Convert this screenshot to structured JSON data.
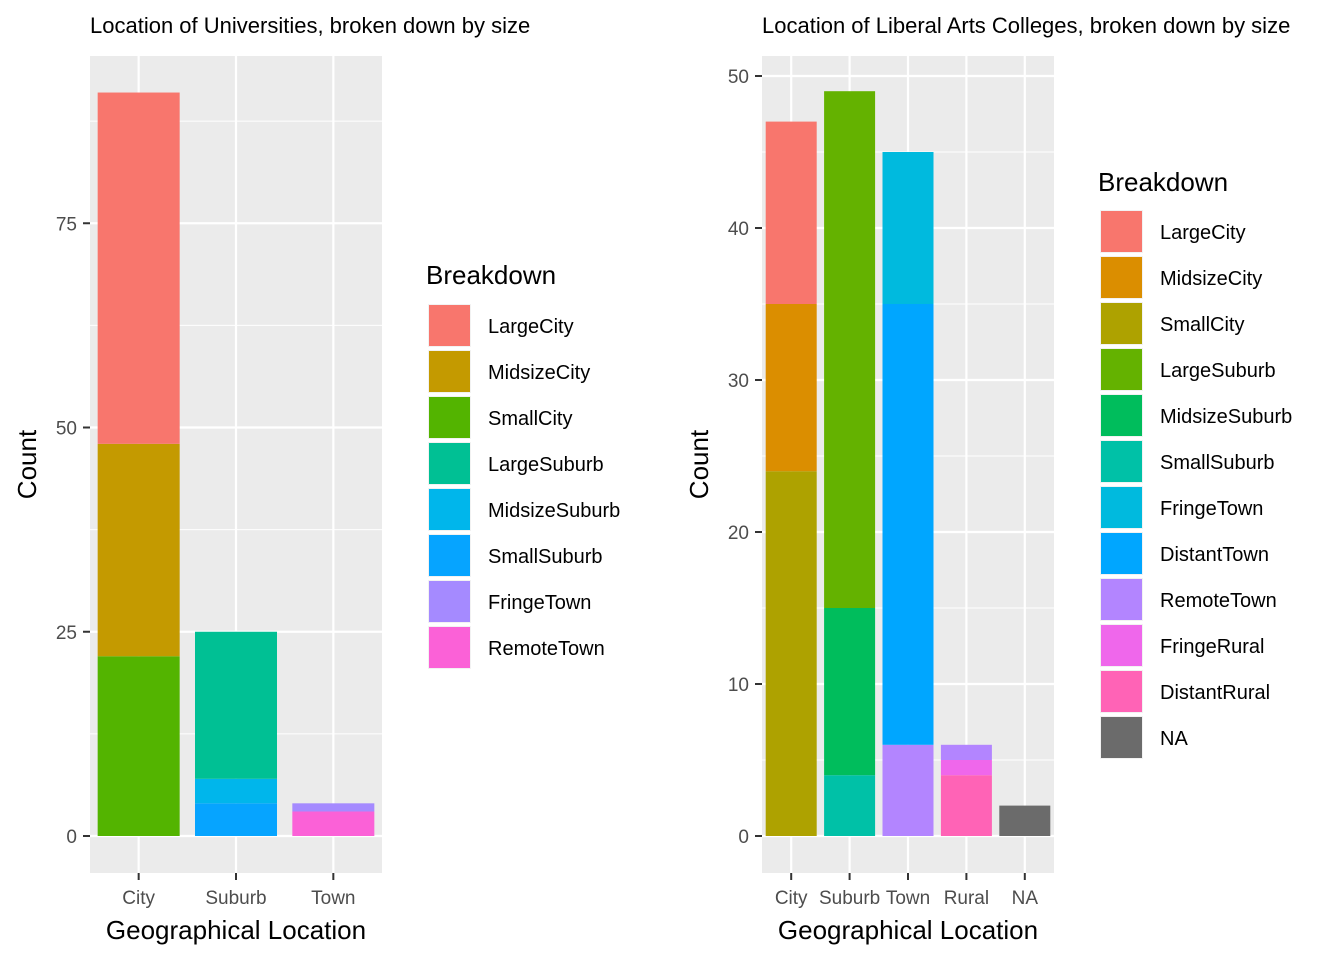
{
  "chart_data": [
    {
      "type": "bar",
      "stacked": true,
      "title": "Location of Universities, broken down by size",
      "xlabel": "Geographical Location",
      "ylabel": "Count",
      "categories": [
        "City",
        "Suburb",
        "Town"
      ],
      "ylim": [
        0,
        91
      ],
      "yticks": [
        0,
        25,
        50,
        75
      ],
      "grid": true,
      "legend_title": "Breakdown",
      "legend_position": "right",
      "series": [
        {
          "name": "LargeCity",
          "color": "#F8766D",
          "values": [
            43,
            0,
            0
          ]
        },
        {
          "name": "MidsizeCity",
          "color": "#C49A00",
          "values": [
            26,
            0,
            0
          ]
        },
        {
          "name": "SmallCity",
          "color": "#53B400",
          "values": [
            22,
            0,
            0
          ]
        },
        {
          "name": "LargeSuburb",
          "color": "#00C094",
          "values": [
            0,
            18,
            0
          ]
        },
        {
          "name": "MidsizeSuburb",
          "color": "#00B6EB",
          "values": [
            0,
            3,
            0
          ]
        },
        {
          "name": "SmallSuburb",
          "color": "#06A4FF",
          "values": [
            0,
            4,
            0
          ]
        },
        {
          "name": "FringeTown",
          "color": "#A58AFF",
          "values": [
            0,
            0,
            1
          ]
        },
        {
          "name": "RemoteTown",
          "color": "#FB61D7",
          "values": [
            0,
            0,
            3
          ]
        }
      ]
    },
    {
      "type": "bar",
      "stacked": true,
      "title": "Location of Liberal Arts Colleges, broken down by size",
      "xlabel": "Geographical Location",
      "ylabel": "Count",
      "categories": [
        "City",
        "Suburb",
        "Town",
        "Rural",
        "NA"
      ],
      "ylim": [
        0,
        50
      ],
      "yticks": [
        0,
        10,
        20,
        30,
        40,
        50
      ],
      "grid": true,
      "legend_title": "Breakdown",
      "legend_position": "right",
      "series": [
        {
          "name": "LargeCity",
          "color": "#F8766D",
          "values": [
            12,
            0,
            0,
            0,
            0
          ]
        },
        {
          "name": "MidsizeCity",
          "color": "#DB8E00",
          "values": [
            11,
            0,
            0,
            0,
            0
          ]
        },
        {
          "name": "SmallCity",
          "color": "#AEA200",
          "values": [
            24,
            0,
            0,
            0,
            0
          ]
        },
        {
          "name": "LargeSuburb",
          "color": "#64B200",
          "values": [
            0,
            34,
            0,
            0,
            0
          ]
        },
        {
          "name": "MidsizeSuburb",
          "color": "#00BD5C",
          "values": [
            0,
            11,
            0,
            0,
            0
          ]
        },
        {
          "name": "SmallSuburb",
          "color": "#00C1A7",
          "values": [
            0,
            4,
            0,
            0,
            0
          ]
        },
        {
          "name": "FringeTown",
          "color": "#00BADE",
          "values": [
            0,
            0,
            10,
            0,
            0
          ]
        },
        {
          "name": "DistantTown",
          "color": "#00A6FF",
          "values": [
            0,
            0,
            29,
            0,
            0
          ]
        },
        {
          "name": "RemoteTown",
          "color": "#B385FF",
          "values": [
            0,
            0,
            6,
            1,
            0
          ]
        },
        {
          "name": "FringeRural",
          "color": "#EF67EB",
          "values": [
            0,
            0,
            0,
            1,
            0
          ]
        },
        {
          "name": "DistantRural",
          "color": "#FF63B6",
          "values": [
            0,
            0,
            0,
            4,
            0
          ]
        },
        {
          "name": "NA",
          "color": "#6B6B6B",
          "values": [
            0,
            0,
            0,
            0,
            2
          ]
        }
      ]
    }
  ]
}
